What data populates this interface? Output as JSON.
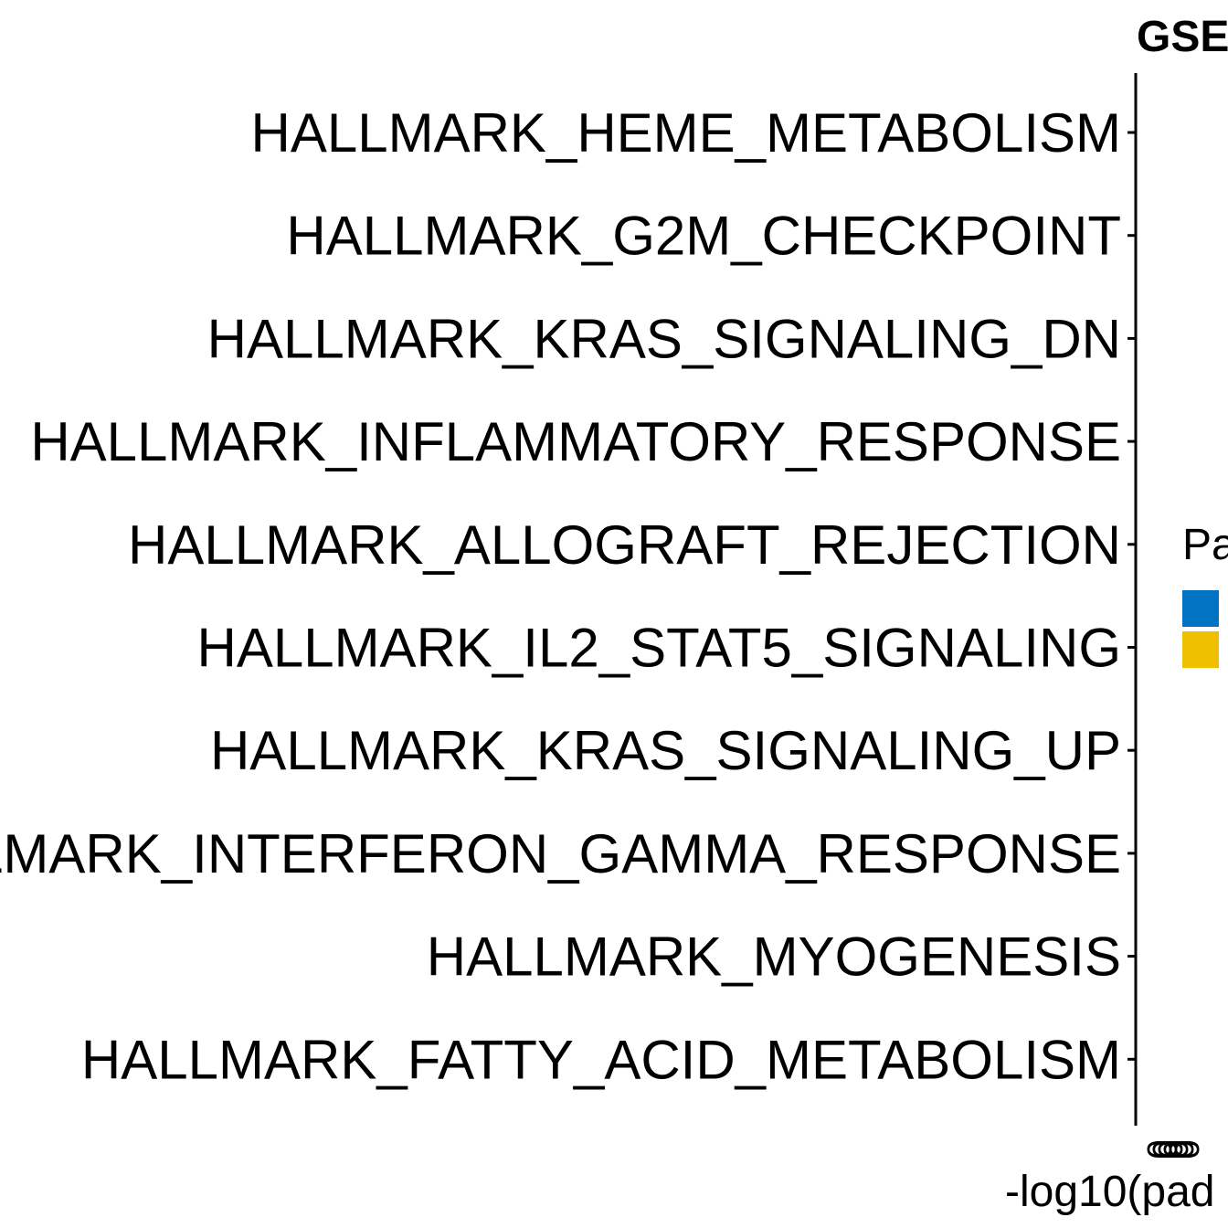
{
  "chart_data": {
    "type": "bar",
    "orientation": "horizontal",
    "title": "GSE",
    "xlabel": "-log10(pad",
    "categories": [
      "HALLMARK_HEME_METABOLISM",
      "HALLMARK_G2M_CHECKPOINT",
      "HALLMARK_KRAS_SIGNALING_DN",
      "HALLMARK_INFLAMMATORY_RESPONSE",
      "HALLMARK_ALLOGRAFT_REJECTION",
      "HALLMARK_IL2_STAT5_SIGNALING",
      "HALLMARK_KRAS_SIGNALING_UP",
      "HALLMARK_INTERFERON_GAMMA_RESPONSE",
      "HALLMARK_MYOGENESIS",
      "HALLMARK_FATTY_ACID_METABOLISM"
    ],
    "x_tick_labels": [
      "0",
      "0",
      "0",
      "0",
      "0",
      "0"
    ],
    "legend": {
      "title": "Pa",
      "placement": "right",
      "colors": [
        "#0073C2",
        "#EFC000"
      ]
    },
    "grid": false
  }
}
